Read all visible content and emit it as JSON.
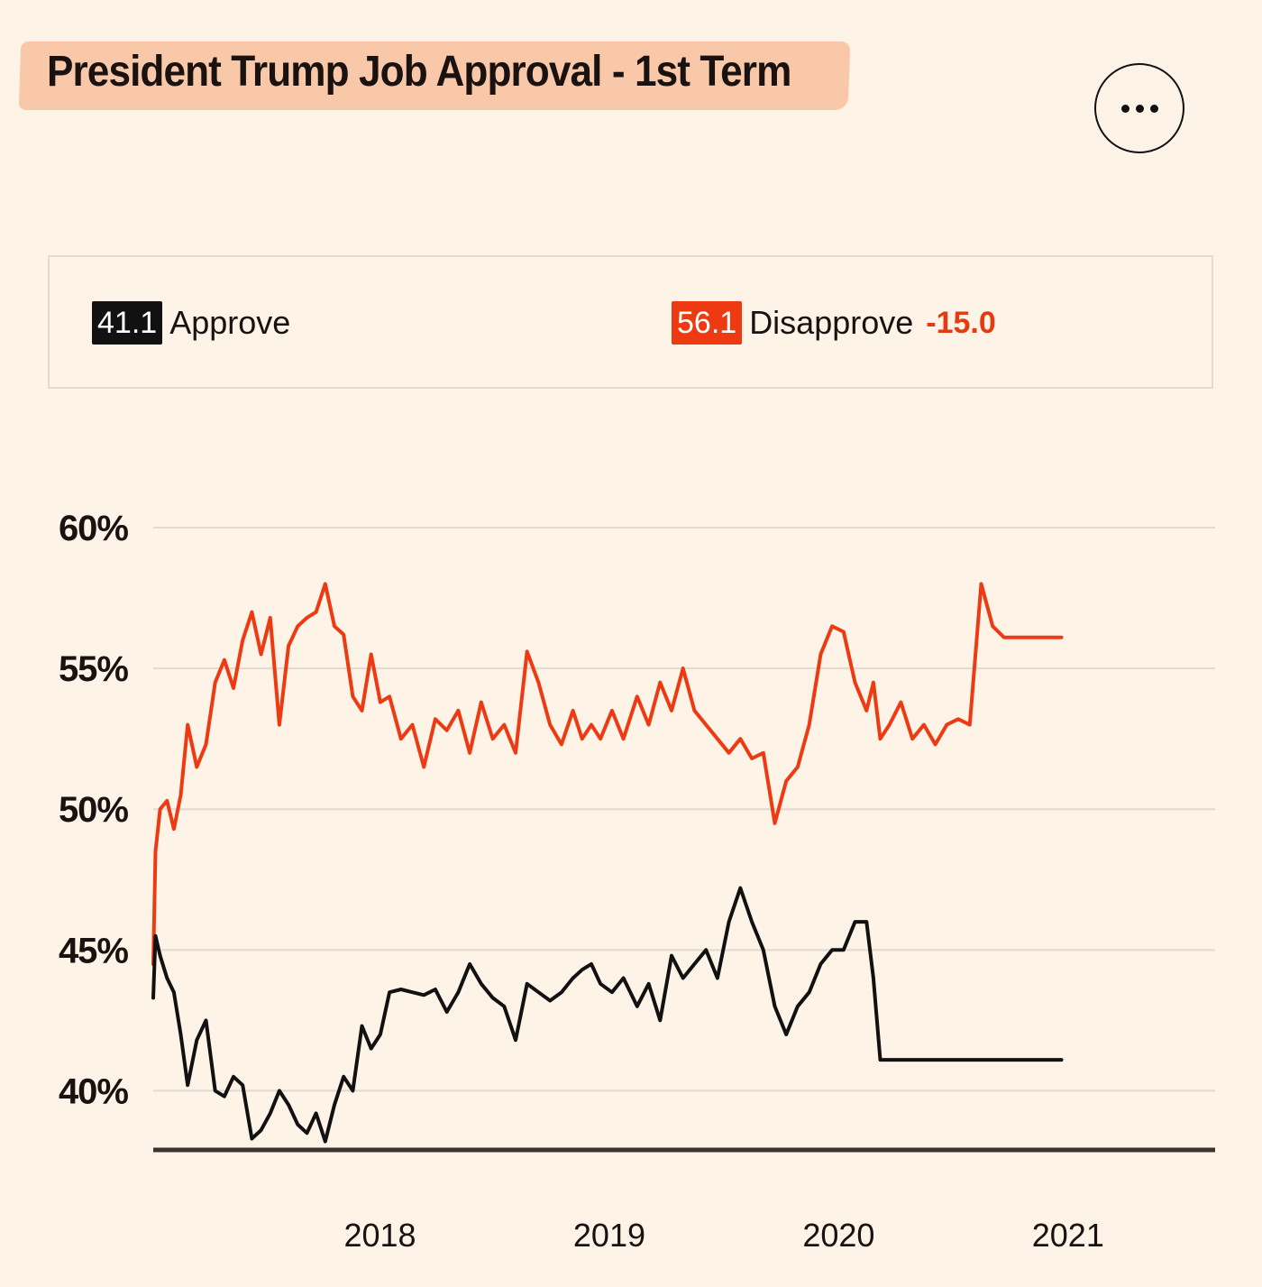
{
  "header": {
    "title": "President Trump Job Approval - 1st Term",
    "menu_icon": "more-horizontal-icon"
  },
  "legend": {
    "approve": {
      "value": "41.1",
      "label": "Approve",
      "color": "#111111"
    },
    "disapprove": {
      "value": "56.1",
      "label": "Disapprove",
      "color": "#ee3a12",
      "net": "-15.0"
    }
  },
  "chart_data": {
    "type": "line",
    "title": "President Trump Job Approval - 1st Term",
    "xlabel": "",
    "ylabel": "",
    "x_ticks": [
      "2018",
      "2019",
      "2020",
      "2021"
    ],
    "x_tick_values": [
      2018.0,
      2019.0,
      2020.0,
      2021.0
    ],
    "y_ticks": [
      "60%",
      "55%",
      "50%",
      "45%",
      "40%"
    ],
    "y_tick_values": [
      60,
      55,
      50,
      45,
      40
    ],
    "xlim": [
      2017.09,
      2021.72
    ],
    "ylim": [
      37.9,
      60
    ],
    "grid": true,
    "series": [
      {
        "name": "Disapprove",
        "color": "#ee3a12",
        "x": [
          2017.09,
          2017.1,
          2017.12,
          2017.15,
          2017.18,
          2017.21,
          2017.24,
          2017.28,
          2017.32,
          2017.36,
          2017.4,
          2017.44,
          2017.48,
          2017.52,
          2017.56,
          2017.6,
          2017.64,
          2017.68,
          2017.72,
          2017.76,
          2017.8,
          2017.84,
          2017.88,
          2017.92,
          2017.96,
          2018.0,
          2018.04,
          2018.08,
          2018.12,
          2018.17,
          2018.22,
          2018.27,
          2018.32,
          2018.37,
          2018.42,
          2018.47,
          2018.52,
          2018.57,
          2018.62,
          2018.67,
          2018.72,
          2018.77,
          2018.82,
          2018.87,
          2018.92,
          2018.96,
          2019.0,
          2019.04,
          2019.09,
          2019.14,
          2019.2,
          2019.25,
          2019.3,
          2019.35,
          2019.4,
          2019.45,
          2019.5,
          2019.55,
          2019.6,
          2019.65,
          2019.7,
          2019.75,
          2019.8,
          2019.85,
          2019.9,
          2019.95,
          2020.0,
          2020.05,
          2020.1,
          2020.15,
          2020.2,
          2020.23,
          2020.26,
          2020.3,
          2020.35,
          2020.4,
          2020.45,
          2020.5,
          2020.55,
          2020.6,
          2020.65,
          2020.7,
          2020.75,
          2020.8,
          2020.85,
          2020.9,
          2020.95,
          2020.98,
          2021.01,
          2021.03,
          2021.05
        ],
        "values": [
          44.5,
          48.5,
          50.0,
          50.3,
          49.3,
          50.5,
          53.0,
          51.5,
          52.3,
          54.5,
          55.3,
          54.3,
          56.0,
          57.0,
          55.5,
          56.8,
          53.0,
          55.8,
          56.5,
          56.8,
          57.0,
          58.0,
          56.5,
          56.2,
          54.0,
          53.5,
          55.5,
          53.8,
          54.0,
          52.5,
          53.0,
          51.5,
          53.2,
          52.8,
          53.5,
          52.0,
          53.8,
          52.5,
          53.0,
          52.0,
          55.6,
          54.5,
          53.0,
          52.3,
          53.5,
          52.5,
          53.0,
          52.5,
          53.5,
          52.5,
          54.0,
          53.0,
          54.5,
          53.5,
          55.0,
          53.5,
          53.0,
          52.5,
          52.0,
          52.5,
          51.8,
          52.0,
          49.5,
          51.0,
          51.5,
          53.0,
          55.5,
          56.5,
          56.3,
          54.5,
          53.5,
          54.5,
          52.5,
          53.0,
          53.8,
          52.5,
          53.0,
          52.3,
          53.0,
          53.2,
          53.0,
          58.0,
          56.5,
          56.1,
          56.1,
          56.1,
          56.1,
          56.1,
          56.1,
          56.1,
          56.1
        ],
        "labels": []
      },
      {
        "name": "Approve",
        "color": "#111111",
        "x": [
          2017.09,
          2017.1,
          2017.12,
          2017.15,
          2017.18,
          2017.21,
          2017.24,
          2017.28,
          2017.32,
          2017.36,
          2017.4,
          2017.44,
          2017.48,
          2017.52,
          2017.56,
          2017.6,
          2017.64,
          2017.68,
          2017.72,
          2017.76,
          2017.8,
          2017.84,
          2017.88,
          2017.92,
          2017.96,
          2018.0,
          2018.04,
          2018.08,
          2018.12,
          2018.17,
          2018.22,
          2018.27,
          2018.32,
          2018.37,
          2018.42,
          2018.47,
          2018.52,
          2018.57,
          2018.62,
          2018.67,
          2018.72,
          2018.77,
          2018.82,
          2018.87,
          2018.92,
          2018.96,
          2019.0,
          2019.04,
          2019.09,
          2019.14,
          2019.2,
          2019.25,
          2019.3,
          2019.35,
          2019.4,
          2019.45,
          2019.5,
          2019.55,
          2019.6,
          2019.65,
          2019.7,
          2019.75,
          2019.8,
          2019.85,
          2019.9,
          2019.95,
          2020.0,
          2020.05,
          2020.1,
          2020.15,
          2020.2,
          2020.23,
          2020.26,
          2020.3,
          2020.35,
          2020.4,
          2020.45,
          2020.5,
          2020.55,
          2020.6,
          2020.65,
          2020.7,
          2020.75,
          2020.8,
          2020.85,
          2020.9,
          2020.95,
          2020.98,
          2021.01,
          2021.03,
          2021.05
        ],
        "values": [
          43.3,
          45.5,
          44.8,
          44.0,
          43.5,
          42.0,
          40.2,
          41.8,
          42.5,
          40.0,
          39.8,
          40.5,
          40.2,
          38.3,
          38.6,
          39.2,
          40.0,
          39.5,
          38.8,
          38.5,
          39.2,
          38.2,
          39.5,
          40.5,
          40.0,
          42.3,
          41.5,
          42.0,
          43.5,
          43.6,
          43.5,
          43.4,
          43.6,
          42.8,
          43.5,
          44.5,
          43.8,
          43.3,
          43.0,
          41.8,
          43.8,
          43.5,
          43.2,
          43.5,
          44.0,
          44.3,
          44.5,
          43.8,
          43.5,
          44.0,
          43.0,
          43.8,
          42.5,
          44.8,
          44.0,
          44.5,
          45.0,
          44.0,
          46.0,
          47.2,
          46.0,
          45.0,
          43.0,
          42.0,
          43.0,
          43.5,
          44.5,
          45.0,
          45.0,
          46.0,
          46.0,
          44.0,
          41.1,
          41.1,
          41.1,
          41.1,
          41.1,
          41.1,
          41.1,
          41.1,
          41.1,
          41.1,
          41.1,
          41.1,
          41.1,
          41.1,
          41.1,
          41.1,
          41.1,
          41.1,
          41.1
        ],
        "labels": []
      }
    ]
  }
}
